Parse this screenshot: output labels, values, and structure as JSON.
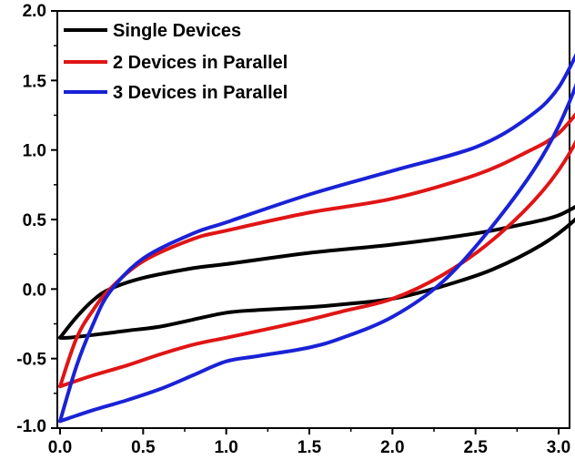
{
  "chart_data": {
    "type": "line",
    "title": "",
    "xlabel": "",
    "ylabel": "",
    "xlim": [
      0,
      3.25
    ],
    "ylim": [
      -1.0,
      2.0
    ],
    "xticks": [
      "0.0",
      "0.5",
      "1.0",
      "1.5",
      "2.0",
      "2.5",
      "3.0"
    ],
    "yticks": [
      "-1.0",
      "-0.5",
      "0.0",
      "0.5",
      "1.0",
      "1.5",
      "2.0"
    ],
    "grid": false,
    "legend_position": "top-left",
    "series": [
      {
        "name": "Single Devices",
        "color": "#000000",
        "x": [
          0.0,
          0.1,
          0.2,
          0.3,
          0.5,
          0.8,
          1.0,
          1.5,
          2.0,
          2.5,
          2.8,
          3.0,
          3.2,
          3.1,
          2.9,
          2.6,
          2.3,
          2.0,
          1.7,
          1.5,
          1.2,
          1.0,
          0.8,
          0.6,
          0.4,
          0.2,
          0.05,
          0.0
        ],
        "y": [
          -0.35,
          -0.2,
          -0.08,
          0.0,
          0.08,
          0.15,
          0.18,
          0.26,
          0.32,
          0.4,
          0.47,
          0.53,
          0.65,
          0.5,
          0.32,
          0.14,
          0.02,
          -0.07,
          -0.11,
          -0.13,
          -0.15,
          -0.17,
          -0.22,
          -0.27,
          -0.3,
          -0.33,
          -0.35,
          -0.35
        ]
      },
      {
        "name": "2 Devices in Parallel",
        "color": "#e01515",
        "x": [
          0.0,
          0.1,
          0.2,
          0.3,
          0.5,
          0.8,
          1.0,
          1.5,
          2.0,
          2.5,
          2.8,
          3.0,
          3.2,
          3.1,
          2.9,
          2.6,
          2.3,
          2.0,
          1.7,
          1.5,
          1.2,
          1.0,
          0.8,
          0.6,
          0.4,
          0.2,
          0.05,
          0.0
        ],
        "y": [
          -0.7,
          -0.35,
          -0.15,
          0.0,
          0.2,
          0.36,
          0.42,
          0.55,
          0.65,
          0.82,
          0.98,
          1.12,
          1.38,
          1.05,
          0.7,
          0.35,
          0.1,
          -0.07,
          -0.16,
          -0.22,
          -0.3,
          -0.35,
          -0.4,
          -0.47,
          -0.55,
          -0.62,
          -0.68,
          -0.7
        ]
      },
      {
        "name": "3 Devices in Parallel",
        "color": "#1a22d6",
        "x": [
          0.0,
          0.1,
          0.2,
          0.3,
          0.5,
          0.8,
          1.0,
          1.5,
          2.0,
          2.5,
          2.8,
          3.0,
          3.2,
          3.1,
          2.9,
          2.6,
          2.3,
          2.0,
          1.7,
          1.5,
          1.2,
          1.0,
          0.8,
          0.6,
          0.4,
          0.2,
          0.05,
          0.0
        ],
        "y": [
          -0.95,
          -0.55,
          -0.25,
          -0.02,
          0.22,
          0.4,
          0.48,
          0.68,
          0.85,
          1.02,
          1.22,
          1.45,
          1.9,
          1.45,
          0.95,
          0.45,
          0.05,
          -0.2,
          -0.35,
          -0.42,
          -0.48,
          -0.52,
          -0.62,
          -0.72,
          -0.8,
          -0.87,
          -0.93,
          -0.95
        ]
      }
    ]
  }
}
